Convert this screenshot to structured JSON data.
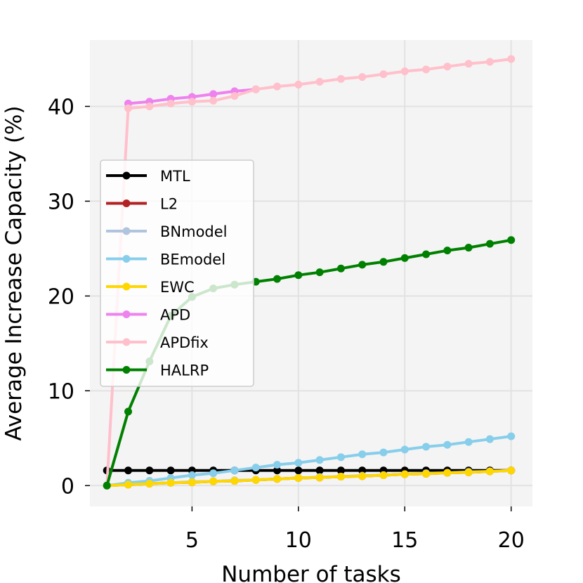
{
  "chart_data": {
    "type": "line",
    "xlabel": "Number of tasks",
    "ylabel": "Average Increase Capacity (%)",
    "xlim": [
      0.2,
      21.0
    ],
    "ylim": [
      -2.2,
      47.0
    ],
    "xticks": [
      5,
      10,
      15,
      20
    ],
    "yticks": [
      0,
      10,
      20,
      30,
      40
    ],
    "grid": true,
    "legend_position": "center-left",
    "series": [
      {
        "name": "MTL",
        "color": "#000000",
        "x": [
          1,
          2,
          3,
          4,
          5,
          6,
          7,
          8,
          9,
          10,
          11,
          12,
          13,
          14,
          15,
          16,
          17,
          18,
          19,
          20
        ],
        "y": [
          1.6,
          1.6,
          1.6,
          1.6,
          1.6,
          1.6,
          1.6,
          1.6,
          1.6,
          1.6,
          1.6,
          1.6,
          1.6,
          1.6,
          1.6,
          1.6,
          1.6,
          1.6,
          1.6,
          1.6
        ]
      },
      {
        "name": "L2",
        "color": "#b22222",
        "x": [
          1,
          2,
          3,
          4,
          5,
          6,
          7,
          8,
          9,
          10,
          11,
          12,
          13,
          14,
          15,
          16,
          17,
          18,
          19,
          20
        ],
        "y": [
          0,
          0.1,
          0.2,
          0.3,
          0.35,
          0.45,
          0.5,
          0.6,
          0.7,
          0.8,
          0.85,
          0.95,
          1.0,
          1.1,
          1.2,
          1.25,
          1.35,
          1.4,
          1.5,
          1.6
        ]
      },
      {
        "name": "BNmodel",
        "color": "#b0c4de",
        "x": [
          1,
          2,
          3,
          4,
          5,
          6,
          7,
          8,
          9,
          10,
          11,
          12,
          13,
          14,
          15,
          16,
          17,
          18,
          19,
          20
        ],
        "y": [
          0,
          0.1,
          0.2,
          0.3,
          0.4,
          0.45,
          0.55,
          0.6,
          0.7,
          0.8,
          0.9,
          0.95,
          1.05,
          1.1,
          1.2,
          1.3,
          1.35,
          1.45,
          1.5,
          1.6
        ]
      },
      {
        "name": "BEmodel",
        "color": "#87ceeb",
        "x": [
          1,
          2,
          3,
          4,
          5,
          6,
          7,
          8,
          9,
          10,
          11,
          12,
          13,
          14,
          15,
          16,
          17,
          18,
          19,
          20
        ],
        "y": [
          0,
          0.3,
          0.5,
          0.8,
          1.1,
          1.3,
          1.6,
          1.9,
          2.2,
          2.4,
          2.7,
          3.0,
          3.3,
          3.5,
          3.8,
          4.1,
          4.3,
          4.6,
          4.9,
          5.2
        ]
      },
      {
        "name": "EWC",
        "color": "#ffd700",
        "x": [
          1,
          2,
          3,
          4,
          5,
          6,
          7,
          8,
          9,
          10,
          11,
          12,
          13,
          14,
          15,
          16,
          17,
          18,
          19,
          20
        ],
        "y": [
          0,
          0.1,
          0.2,
          0.3,
          0.35,
          0.45,
          0.5,
          0.6,
          0.7,
          0.8,
          0.85,
          0.95,
          1.0,
          1.1,
          1.2,
          1.25,
          1.35,
          1.4,
          1.5,
          1.6
        ]
      },
      {
        "name": "APD",
        "color": "#ee82ee",
        "x": [
          2,
          3,
          4,
          5,
          6,
          7,
          8
        ],
        "y": [
          40.3,
          40.5,
          40.8,
          41.0,
          41.3,
          41.6,
          41.8
        ]
      },
      {
        "name": "APDfix",
        "color": "#ffc0cb",
        "x": [
          1,
          2,
          3,
          4,
          5,
          6,
          7,
          8,
          9,
          10,
          11,
          12,
          13,
          14,
          15,
          16,
          17,
          18,
          19,
          20
        ],
        "y": [
          0,
          39.8,
          40.0,
          40.3,
          40.5,
          40.6,
          41.1,
          41.8,
          42.1,
          42.3,
          42.6,
          42.9,
          43.1,
          43.4,
          43.7,
          43.9,
          44.2,
          44.5,
          44.7,
          45.0
        ]
      },
      {
        "name": "HALRP",
        "color": "#008000",
        "x": [
          1,
          2,
          3,
          4,
          5,
          6,
          7,
          8,
          9,
          10,
          11,
          12,
          13,
          14,
          15,
          16,
          17,
          18,
          19,
          20
        ],
        "y": [
          0,
          7.8,
          13.1,
          17.9,
          19.9,
          20.8,
          21.2,
          21.5,
          21.8,
          22.2,
          22.5,
          22.9,
          23.3,
          23.6,
          24.0,
          24.4,
          24.8,
          25.1,
          25.5,
          25.9
        ]
      }
    ]
  }
}
